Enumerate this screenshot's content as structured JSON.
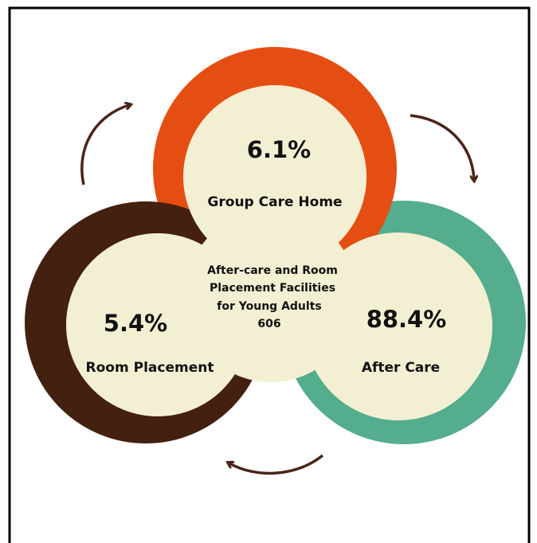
{
  "center": {
    "lines": [
      "After-care and Room",
      "Placement Facilities",
      "for Young Adults",
      "606"
    ]
  },
  "segments": [
    {
      "value": "6.1%",
      "label": "Group Care Home"
    },
    {
      "value": "5.4%",
      "label": "Room Placement"
    },
    {
      "value": "88.4%",
      "label": "After Care"
    }
  ]
}
